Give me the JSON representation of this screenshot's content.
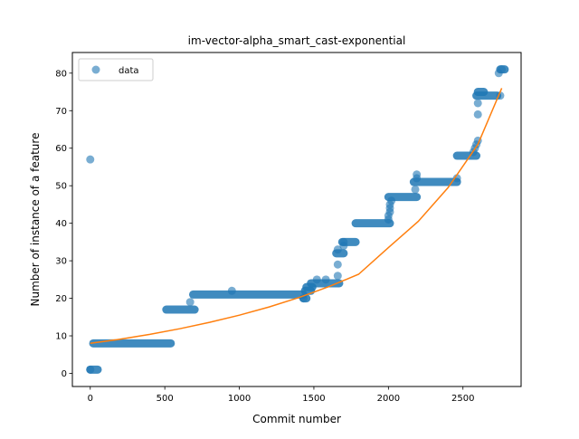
{
  "chart_data": {
    "type": "scatter",
    "title": "im-vector-alpha_smart_cast-exponential",
    "xlabel": "Commit number",
    "ylabel": "Number of instance of a feature",
    "xlim": [
      -120,
      2890
    ],
    "ylim": [
      -3.5,
      85.5
    ],
    "xticks": [
      0,
      500,
      1000,
      1500,
      2000,
      2500
    ],
    "yticks": [
      0,
      10,
      20,
      30,
      40,
      50,
      60,
      70,
      80
    ],
    "grid": false,
    "legend": {
      "placement": "top-left",
      "entries": [
        "data"
      ]
    },
    "colors": {
      "data": "#1f77b4",
      "fit": "#ff7f0e"
    },
    "segments": [
      {
        "x_start": 0,
        "x_end": 50,
        "y": 1
      },
      {
        "x_start": 20,
        "x_end": 540,
        "y": 8
      },
      {
        "x_start": 510,
        "x_end": 700,
        "y": 17
      },
      {
        "x_start": 690,
        "x_end": 1430,
        "y": 21
      },
      {
        "x_start": 1430,
        "x_end": 1450,
        "y": 20
      },
      {
        "x_start": 1440,
        "x_end": 1480,
        "y": 22
      },
      {
        "x_start": 1450,
        "x_end": 1490,
        "y": 23
      },
      {
        "x_start": 1480,
        "x_end": 1670,
        "y": 24
      },
      {
        "x_start": 1650,
        "x_end": 1700,
        "y": 32
      },
      {
        "x_start": 1690,
        "x_end": 1780,
        "y": 35
      },
      {
        "x_start": 1780,
        "x_end": 2010,
        "y": 40
      },
      {
        "x_start": 2000,
        "x_end": 2190,
        "y": 47
      },
      {
        "x_start": 2170,
        "x_end": 2460,
        "y": 51
      },
      {
        "x_start": 2460,
        "x_end": 2590,
        "y": 58
      },
      {
        "x_start": 2590,
        "x_end": 2730,
        "y": 74
      },
      {
        "x_start": 2600,
        "x_end": 2640,
        "y": 75
      },
      {
        "x_start": 2750,
        "x_end": 2780,
        "y": 81
      }
    ],
    "points": [
      {
        "x": 0,
        "y": 57
      },
      {
        "x": 0,
        "y": 1
      },
      {
        "x": 670,
        "y": 19
      },
      {
        "x": 950,
        "y": 22
      },
      {
        "x": 1430,
        "y": 20
      },
      {
        "x": 1520,
        "y": 25
      },
      {
        "x": 1580,
        "y": 25
      },
      {
        "x": 1660,
        "y": 26
      },
      {
        "x": 1660,
        "y": 29
      },
      {
        "x": 1660,
        "y": 33
      },
      {
        "x": 1700,
        "y": 34
      },
      {
        "x": 1700,
        "y": 35
      },
      {
        "x": 2000,
        "y": 41
      },
      {
        "x": 2000,
        "y": 42
      },
      {
        "x": 2010,
        "y": 43
      },
      {
        "x": 2010,
        "y": 44
      },
      {
        "x": 2010,
        "y": 45
      },
      {
        "x": 2020,
        "y": 46
      },
      {
        "x": 2180,
        "y": 49
      },
      {
        "x": 2190,
        "y": 52
      },
      {
        "x": 2190,
        "y": 53
      },
      {
        "x": 2460,
        "y": 52
      },
      {
        "x": 2570,
        "y": 59
      },
      {
        "x": 2580,
        "y": 60
      },
      {
        "x": 2590,
        "y": 61
      },
      {
        "x": 2600,
        "y": 62
      },
      {
        "x": 2600,
        "y": 69
      },
      {
        "x": 2600,
        "y": 72
      },
      {
        "x": 2740,
        "y": 80
      },
      {
        "x": 2750,
        "y": 74
      },
      {
        "x": 2760,
        "y": 81
      }
    ],
    "fit": {
      "model": "exponential",
      "x": [
        0,
        200,
        400,
        600,
        800,
        1000,
        1200,
        1400,
        1600,
        1800,
        2000,
        2200,
        2400,
        2600,
        2760
      ],
      "y": [
        8,
        9.1,
        10.4,
        11.9,
        13.6,
        15.5,
        17.7,
        20.2,
        23.1,
        26.4,
        33.5,
        40.5,
        49.5,
        61,
        76
      ]
    }
  }
}
